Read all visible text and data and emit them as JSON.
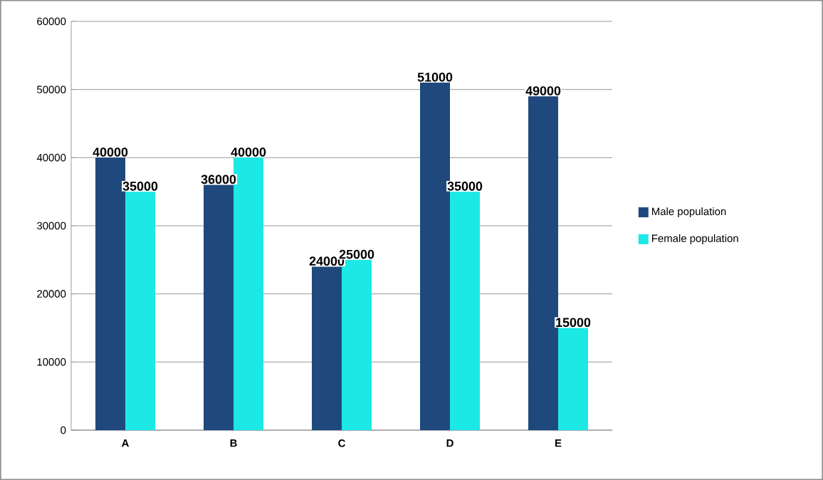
{
  "chart_data": {
    "type": "bar",
    "categories": [
      "A",
      "B",
      "C",
      "D",
      "E"
    ],
    "series": [
      {
        "name": "Male population",
        "color": "#1f497d",
        "values": [
          40000,
          36000,
          24000,
          51000,
          49000
        ]
      },
      {
        "name": "Female population",
        "color": "#1ce8e6",
        "values": [
          35000,
          40000,
          25000,
          35000,
          15000
        ]
      }
    ],
    "ylim": [
      0,
      60000
    ],
    "yticks": [
      0,
      10000,
      20000,
      30000,
      40000,
      50000,
      60000
    ],
    "grid": "y",
    "legend": "right",
    "data_labels": true
  }
}
